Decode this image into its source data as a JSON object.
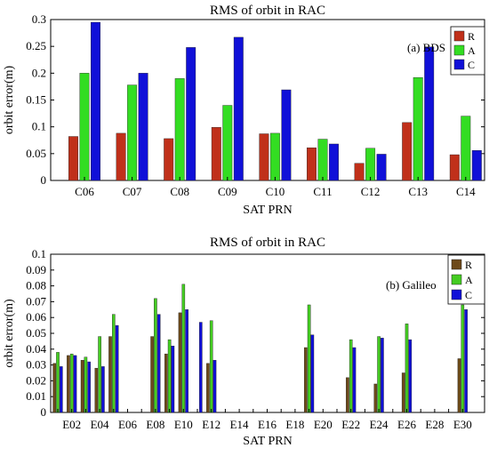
{
  "chart_data": [
    {
      "type": "bar",
      "title": "RMS of orbit in RAC",
      "xlabel": "SAT PRN",
      "ylabel": "orbit error(m)",
      "annotation": "(a) BDS",
      "ylim": [
        0,
        0.3
      ],
      "yticks": [
        "0",
        "0.05",
        "0.1",
        "0.15",
        "0.2",
        "0.25",
        "0.3"
      ],
      "categories": [
        "C06",
        "C07",
        "C08",
        "C09",
        "C10",
        "C11",
        "C12",
        "C13",
        "C14"
      ],
      "legend_position": "top-right",
      "series": [
        {
          "name": "R",
          "color": "#c0301a",
          "values": [
            0.082,
            0.088,
            0.078,
            0.099,
            0.087,
            0.061,
            0.032,
            0.108,
            0.048
          ]
        },
        {
          "name": "A",
          "color": "#33dd22",
          "values": [
            0.2,
            0.178,
            0.19,
            0.14,
            0.088,
            0.077,
            0.06,
            0.192,
            0.12
          ]
        },
        {
          "name": "C",
          "color": "#1010d8",
          "values": [
            0.295,
            0.2,
            0.248,
            0.267,
            0.169,
            0.068,
            0.049,
            0.249,
            0.056
          ]
        }
      ]
    },
    {
      "type": "bar",
      "title": "RMS of orbit in RAC",
      "xlabel": "SAT  PRN",
      "ylabel": "orbit error(m)",
      "annotation": "(b) Galileo",
      "ylim": [
        0,
        0.1
      ],
      "yticks": [
        "0",
        "0.01",
        "0.02",
        "0.03",
        "0.04",
        "0.05",
        "0.06",
        "0.07",
        "0.08",
        "0.09",
        "0.1"
      ],
      "categories": [
        "E01",
        "E02",
        "E03",
        "E04",
        "E05",
        "E06",
        "E07",
        "E08",
        "E09",
        "E10",
        "E11",
        "E12",
        "E13",
        "E14",
        "E15",
        "E16",
        "E17",
        "E18",
        "E19",
        "E20",
        "E21",
        "E22",
        "E23",
        "E24",
        "E25",
        "E26",
        "E27",
        "E28",
        "E29",
        "E30"
      ],
      "tick_labels": [
        "",
        "E02",
        "",
        "E04",
        "",
        "E06",
        "",
        "E08",
        "",
        "E10",
        "",
        "E12",
        "",
        "E14",
        "",
        "E16",
        "",
        "E18",
        "",
        "E20",
        "",
        "E22",
        "",
        "E24",
        "",
        "E26",
        "",
        "E28",
        "",
        "E30"
      ],
      "legend_position": "top-right",
      "series": [
        {
          "name": "R",
          "color": "#6e4a1a",
          "values": [
            0.031,
            0.036,
            0.033,
            0.028,
            0.048,
            0,
            0,
            0.048,
            0.037,
            0.063,
            0,
            0.031,
            0,
            0,
            0,
            0,
            0,
            0,
            0.041,
            0,
            0,
            0.022,
            0,
            0.018,
            0,
            0.025,
            0,
            0,
            0,
            0.034
          ]
        },
        {
          "name": "A",
          "color": "#44cc22",
          "values": [
            0.038,
            0.037,
            0.035,
            0.048,
            0.062,
            0,
            0,
            0.072,
            0.046,
            0.081,
            0,
            0.058,
            0,
            0,
            0,
            0,
            0,
            0,
            0.068,
            0,
            0,
            0.046,
            0,
            0.048,
            0,
            0.056,
            0,
            0,
            0,
            0.068
          ]
        },
        {
          "name": "C",
          "color": "#1010d8",
          "values": [
            0.029,
            0.036,
            0.032,
            0.029,
            0.055,
            0,
            0,
            0.062,
            0.042,
            0.065,
            0.057,
            0.033,
            0,
            0,
            0,
            0,
            0,
            0,
            0.049,
            0,
            0,
            0.041,
            0,
            0.047,
            0,
            0.046,
            0,
            0,
            0,
            0.065
          ]
        }
      ]
    }
  ]
}
